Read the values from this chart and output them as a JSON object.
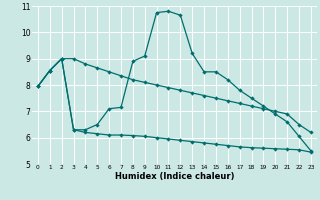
{
  "title": "",
  "xlabel": "Humidex (Indice chaleur)",
  "background_color": "#cce8e4",
  "grid_color": "#ffffff",
  "line_color": "#006e6e",
  "xlim": [
    -0.5,
    23.5
  ],
  "ylim": [
    5,
    11
  ],
  "yticks": [
    5,
    6,
    7,
    8,
    9,
    10,
    11
  ],
  "xtick_labels": [
    "0",
    "1",
    "2",
    "3",
    "4",
    "5",
    "6",
    "7",
    "8",
    "9",
    "10",
    "11",
    "12",
    "13",
    "14",
    "15",
    "16",
    "17",
    "18",
    "19",
    "20",
    "21",
    "22",
    "23"
  ],
  "curve1_x": [
    0,
    1,
    2,
    3,
    4,
    5,
    6,
    7,
    8,
    9,
    10,
    11,
    12,
    13,
    14,
    15,
    16,
    17,
    18,
    19,
    20,
    21,
    22,
    23
  ],
  "curve1_y": [
    7.95,
    8.55,
    9.0,
    9.0,
    8.8,
    8.65,
    8.5,
    8.35,
    8.2,
    8.1,
    8.0,
    7.9,
    7.8,
    7.7,
    7.6,
    7.5,
    7.4,
    7.3,
    7.2,
    7.1,
    7.0,
    6.9,
    6.5,
    6.2
  ],
  "curve2_x": [
    0,
    1,
    2,
    3,
    4,
    5,
    6,
    7,
    8,
    9,
    10,
    11,
    12,
    13,
    14,
    15,
    16,
    17,
    18,
    19,
    20,
    21,
    22,
    23
  ],
  "curve2_y": [
    7.95,
    8.55,
    9.0,
    6.3,
    6.3,
    6.5,
    7.1,
    7.15,
    8.9,
    9.1,
    10.75,
    10.8,
    10.65,
    9.2,
    8.5,
    8.5,
    8.2,
    7.8,
    7.5,
    7.2,
    6.9,
    6.6,
    6.05,
    5.5
  ],
  "curve3_x": [
    0,
    1,
    2,
    3,
    4,
    5,
    6,
    7,
    8,
    9,
    10,
    11,
    12,
    13,
    14,
    15,
    16,
    17,
    18,
    19,
    20,
    21,
    22,
    23
  ],
  "curve3_y": [
    7.95,
    8.55,
    9.0,
    6.3,
    6.2,
    6.15,
    6.1,
    6.1,
    6.08,
    6.05,
    6.0,
    5.95,
    5.9,
    5.85,
    5.8,
    5.75,
    5.7,
    5.65,
    5.62,
    5.6,
    5.58,
    5.56,
    5.54,
    5.45
  ]
}
